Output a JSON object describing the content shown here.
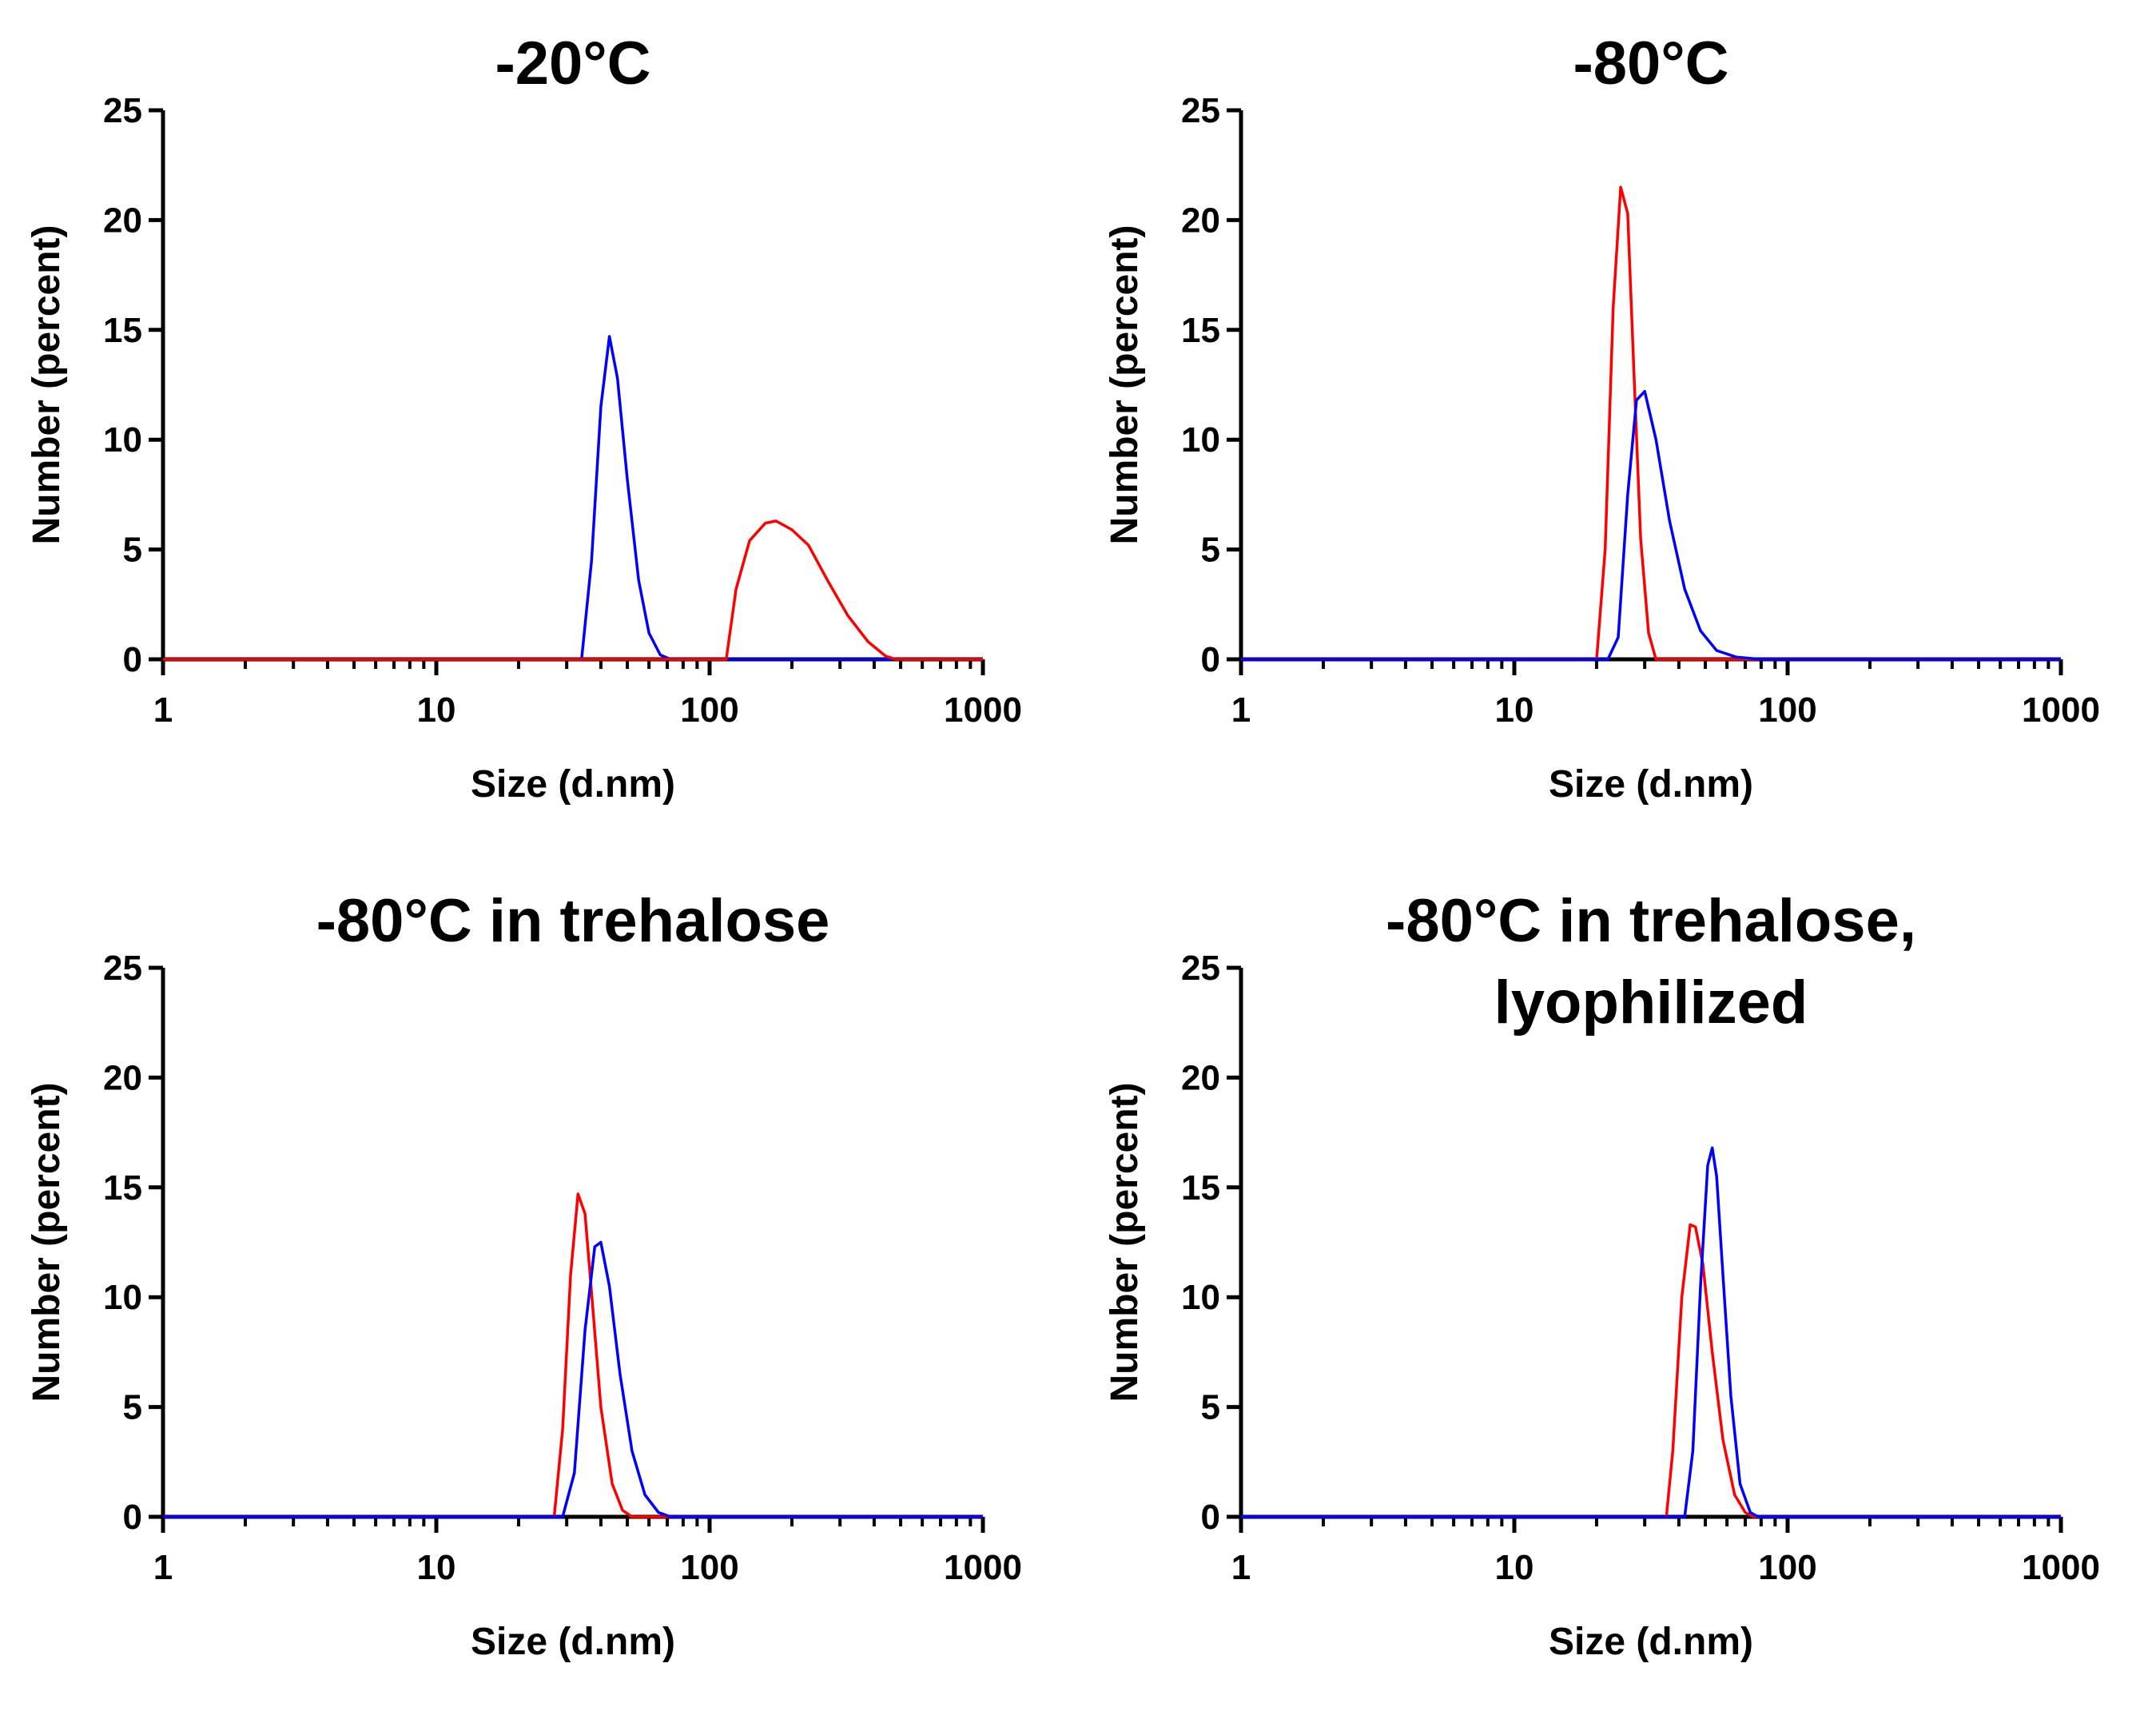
{
  "figure": {
    "layout": "2x2 grid of DLS size-distribution plots"
  },
  "chart_data": [
    {
      "type": "line",
      "title_lines": [
        "-20°C"
      ],
      "xlabel": "Size (d.nm)",
      "ylabel": "Number (percent)",
      "xscale": "log",
      "xlim": [
        1,
        1000
      ],
      "ylim": [
        0,
        25
      ],
      "xticks": [
        1,
        10,
        100,
        1000
      ],
      "xtick_labels": [
        "1",
        "10",
        "100",
        "1000"
      ],
      "yticks": [
        0,
        5,
        10,
        15,
        20,
        25
      ],
      "ytick_labels": [
        "0",
        "5",
        "10",
        "15",
        "20",
        "25"
      ],
      "grid": false,
      "series": [
        {
          "name": "blue",
          "color": "#0000ff",
          "x": [
            1,
            34,
            37,
            40,
            43,
            46,
            50,
            55,
            60,
            66,
            72,
            1000
          ],
          "y": [
            0,
            0,
            4.5,
            11.5,
            14.7,
            12.8,
            8.2,
            3.6,
            1.2,
            0.2,
            0,
            0
          ]
        },
        {
          "name": "red",
          "color": "#ff0000",
          "x": [
            1,
            115,
            125,
            140,
            160,
            175,
            200,
            230,
            270,
            320,
            380,
            440,
            480,
            1000
          ],
          "y": [
            0,
            0,
            3.2,
            5.4,
            6.2,
            6.3,
            5.9,
            5.2,
            3.6,
            2.0,
            0.8,
            0.15,
            0,
            0
          ]
        }
      ]
    },
    {
      "type": "line",
      "title_lines": [
        "-80°C"
      ],
      "xlabel": "Size (d.nm)",
      "ylabel": "Number (percent)",
      "xscale": "log",
      "xlim": [
        1,
        1000
      ],
      "ylim": [
        0,
        25
      ],
      "xticks": [
        1,
        10,
        100,
        1000
      ],
      "xtick_labels": [
        "1",
        "10",
        "100",
        "1000"
      ],
      "yticks": [
        0,
        5,
        10,
        15,
        20,
        25
      ],
      "ytick_labels": [
        "0",
        "5",
        "10",
        "15",
        "20",
        "25"
      ],
      "grid": false,
      "series": [
        {
          "name": "red",
          "color": "#ff0000",
          "x": [
            1,
            20,
            21.5,
            23,
            24.5,
            26,
            27.5,
            29,
            31,
            33,
            1000
          ],
          "y": [
            0,
            0,
            5.0,
            16.0,
            21.5,
            20.3,
            12.5,
            5.5,
            1.2,
            0,
            0
          ]
        },
        {
          "name": "blue",
          "color": "#0000ff",
          "x": [
            1,
            22,
            24,
            26,
            28,
            30,
            33,
            37,
            42,
            48,
            55,
            65,
            80,
            1000
          ],
          "y": [
            0,
            0,
            1.0,
            7.5,
            11.8,
            12.2,
            10.0,
            6.3,
            3.2,
            1.3,
            0.4,
            0.1,
            0,
            0
          ]
        }
      ]
    },
    {
      "type": "line",
      "title_lines": [
        "-80°C in trehalose"
      ],
      "xlabel": "Size (d.nm)",
      "ylabel": "Number (percent)",
      "xscale": "log",
      "xlim": [
        1,
        1000
      ],
      "ylim": [
        0,
        25
      ],
      "xticks": [
        1,
        10,
        100,
        1000
      ],
      "xtick_labels": [
        "1",
        "10",
        "100",
        "1000"
      ],
      "yticks": [
        0,
        5,
        10,
        15,
        20,
        25
      ],
      "ytick_labels": [
        "0",
        "5",
        "10",
        "15",
        "20",
        "25"
      ],
      "grid": false,
      "series": [
        {
          "name": "red",
          "color": "#ff0000",
          "x": [
            1,
            27,
            29,
            31,
            33,
            35,
            37,
            40,
            44,
            48,
            52,
            1000
          ],
          "y": [
            0,
            0,
            4.0,
            11.0,
            14.7,
            13.8,
            10.2,
            5.0,
            1.5,
            0.3,
            0,
            0
          ]
        },
        {
          "name": "blue",
          "color": "#0000ff",
          "x": [
            1,
            29,
            32,
            35,
            38,
            40,
            43,
            47,
            52,
            58,
            65,
            72,
            1000
          ],
          "y": [
            0,
            0,
            2.0,
            8.5,
            12.3,
            12.5,
            10.5,
            6.5,
            3.0,
            1.0,
            0.2,
            0,
            0
          ]
        }
      ]
    },
    {
      "type": "line",
      "title_lines": [
        "-80°C in trehalose,",
        "lyophilized"
      ],
      "xlabel": "Size (d.nm)",
      "ylabel": "Number (percent)",
      "xscale": "log",
      "xlim": [
        1,
        1000
      ],
      "ylim": [
        0,
        25
      ],
      "xticks": [
        1,
        10,
        100,
        1000
      ],
      "xtick_labels": [
        "1",
        "10",
        "100",
        "1000"
      ],
      "yticks": [
        0,
        5,
        10,
        15,
        20,
        25
      ],
      "ytick_labels": [
        "0",
        "5",
        "10",
        "15",
        "20",
        "25"
      ],
      "grid": false,
      "series": [
        {
          "name": "red",
          "color": "#ff0000",
          "x": [
            1,
            36,
            38,
            41,
            44,
            46,
            49,
            53,
            58,
            64,
            70,
            75,
            1000
          ],
          "y": [
            0,
            0,
            3.0,
            10.0,
            13.3,
            13.2,
            11.5,
            7.5,
            3.5,
            1.0,
            0.2,
            0,
            0
          ]
        },
        {
          "name": "blue",
          "color": "#0000ff",
          "x": [
            1,
            42,
            45,
            48,
            51,
            53,
            55,
            58,
            62,
            67,
            73,
            78,
            1000
          ],
          "y": [
            0,
            0,
            3.0,
            10.5,
            16.0,
            16.8,
            15.5,
            11.0,
            5.5,
            1.5,
            0.2,
            0,
            0
          ]
        }
      ]
    }
  ]
}
